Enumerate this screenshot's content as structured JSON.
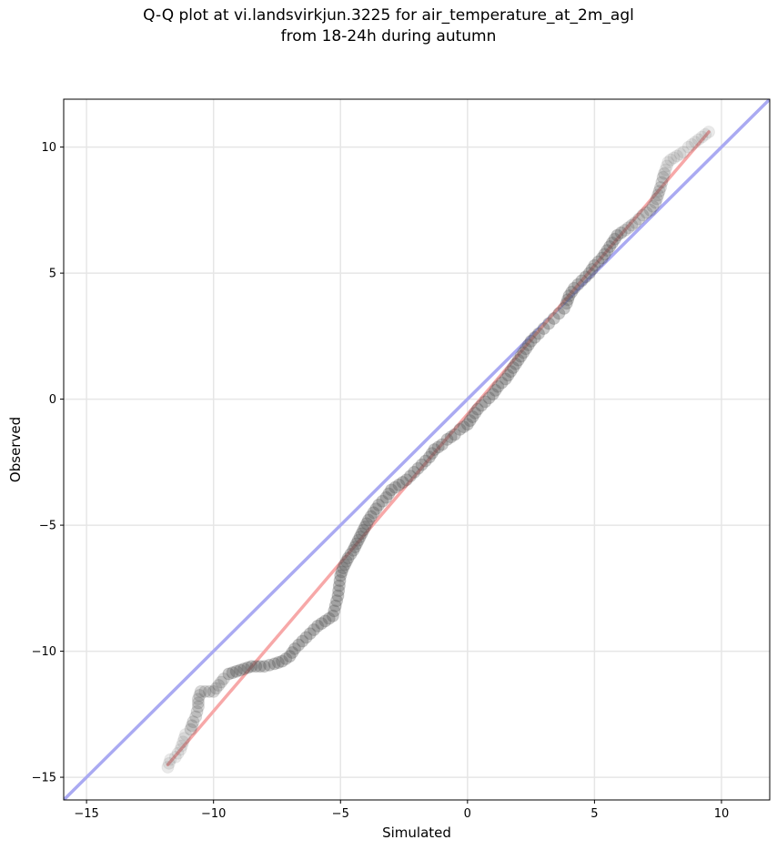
{
  "chart_data": {
    "type": "scatter",
    "title_lines": [
      "Q-Q plot at vi.landsvirkjun.3225 for air_temperature_at_2m_agl",
      "from 18-24h during autumn"
    ],
    "xlabel": "Simulated",
    "ylabel": "Observed",
    "xlim": [
      -15.9,
      11.9
    ],
    "ylim": [
      -15.9,
      11.9
    ],
    "xticks": [
      -15,
      -10,
      -5,
      0,
      5,
      10
    ],
    "yticks": [
      -15,
      -10,
      -5,
      0,
      5,
      10
    ],
    "grid": true,
    "reference_lines": [
      {
        "kind": "identity",
        "color": "#aaaaf2",
        "points": [
          [
            -15.9,
            -15.9
          ],
          [
            11.9,
            11.9
          ]
        ]
      },
      {
        "kind": "fit",
        "color": "#f7a8a8",
        "points": [
          [
            -11.8,
            -14.5
          ],
          [
            9.5,
            10.6
          ]
        ]
      }
    ],
    "quantile_points": [
      [
        -11.8,
        -14.6
      ],
      [
        -11.7,
        -14.3
      ],
      [
        -11.5,
        -14.2
      ],
      [
        -11.3,
        -13.9
      ],
      [
        -11.2,
        -13.6
      ],
      [
        -11.1,
        -13.3
      ],
      [
        -10.9,
        -13.1
      ],
      [
        -10.8,
        -12.8
      ],
      [
        -10.7,
        -12.6
      ],
      [
        -10.6,
        -12.2
      ],
      [
        -10.6,
        -11.9
      ],
      [
        -10.5,
        -11.6
      ],
      [
        -10.0,
        -11.6
      ],
      [
        -9.6,
        -11.1
      ],
      [
        -9.4,
        -10.9
      ],
      [
        -9.1,
        -10.8
      ],
      [
        -8.8,
        -10.7
      ],
      [
        -8.5,
        -10.6
      ],
      [
        -8.0,
        -10.6
      ],
      [
        -7.6,
        -10.5
      ],
      [
        -7.3,
        -10.4
      ],
      [
        -7.0,
        -10.2
      ],
      [
        -6.8,
        -9.9
      ],
      [
        -6.5,
        -9.6
      ],
      [
        -6.2,
        -9.3
      ],
      [
        -5.9,
        -9.0
      ],
      [
        -5.6,
        -8.8
      ],
      [
        -5.3,
        -8.6
      ],
      [
        -5.2,
        -8.2
      ],
      [
        -5.1,
        -7.8
      ],
      [
        -5.05,
        -7.4
      ],
      [
        -5.0,
        -7.0
      ],
      [
        -4.9,
        -6.7
      ],
      [
        -4.7,
        -6.3
      ],
      [
        -4.5,
        -6.0
      ],
      [
        -4.3,
        -5.6
      ],
      [
        -4.1,
        -5.2
      ],
      [
        -3.9,
        -4.8
      ],
      [
        -3.7,
        -4.5
      ],
      [
        -3.5,
        -4.2
      ],
      [
        -3.2,
        -3.9
      ],
      [
        -3.0,
        -3.6
      ],
      [
        -2.7,
        -3.4
      ],
      [
        -2.4,
        -3.2
      ],
      [
        -2.1,
        -2.9
      ],
      [
        -1.8,
        -2.6
      ],
      [
        -1.5,
        -2.3
      ],
      [
        -1.3,
        -2.0
      ],
      [
        -1.0,
        -1.8
      ],
      [
        -0.8,
        -1.6
      ],
      [
        -0.5,
        -1.4
      ],
      [
        -0.3,
        -1.2
      ],
      [
        0.0,
        -1.0
      ],
      [
        0.2,
        -0.7
      ],
      [
        0.4,
        -0.4
      ],
      [
        0.7,
        -0.1
      ],
      [
        1.0,
        0.2
      ],
      [
        1.2,
        0.5
      ],
      [
        1.5,
        0.8
      ],
      [
        1.7,
        1.1
      ],
      [
        1.9,
        1.4
      ],
      [
        2.1,
        1.7
      ],
      [
        2.3,
        2.0
      ],
      [
        2.5,
        2.3
      ],
      [
        2.8,
        2.6
      ],
      [
        3.0,
        2.8
      ],
      [
        3.2,
        3.0
      ],
      [
        3.4,
        3.2
      ],
      [
        3.6,
        3.4
      ],
      [
        3.8,
        3.6
      ],
      [
        3.9,
        3.8
      ],
      [
        4.0,
        4.1
      ],
      [
        4.2,
        4.4
      ],
      [
        4.5,
        4.7
      ],
      [
        4.8,
        5.0
      ],
      [
        5.0,
        5.3
      ],
      [
        5.3,
        5.6
      ],
      [
        5.5,
        5.9
      ],
      [
        5.7,
        6.2
      ],
      [
        5.9,
        6.5
      ],
      [
        6.2,
        6.7
      ],
      [
        6.6,
        7.0
      ],
      [
        6.9,
        7.3
      ],
      [
        7.2,
        7.5
      ],
      [
        7.4,
        7.8
      ],
      [
        7.5,
        8.1
      ],
      [
        7.6,
        8.4
      ],
      [
        7.7,
        8.8
      ],
      [
        7.8,
        9.1
      ],
      [
        7.9,
        9.4
      ],
      [
        8.0,
        9.5
      ],
      [
        8.5,
        9.8
      ],
      [
        8.7,
        10.0
      ],
      [
        9.5,
        10.6
      ]
    ]
  }
}
